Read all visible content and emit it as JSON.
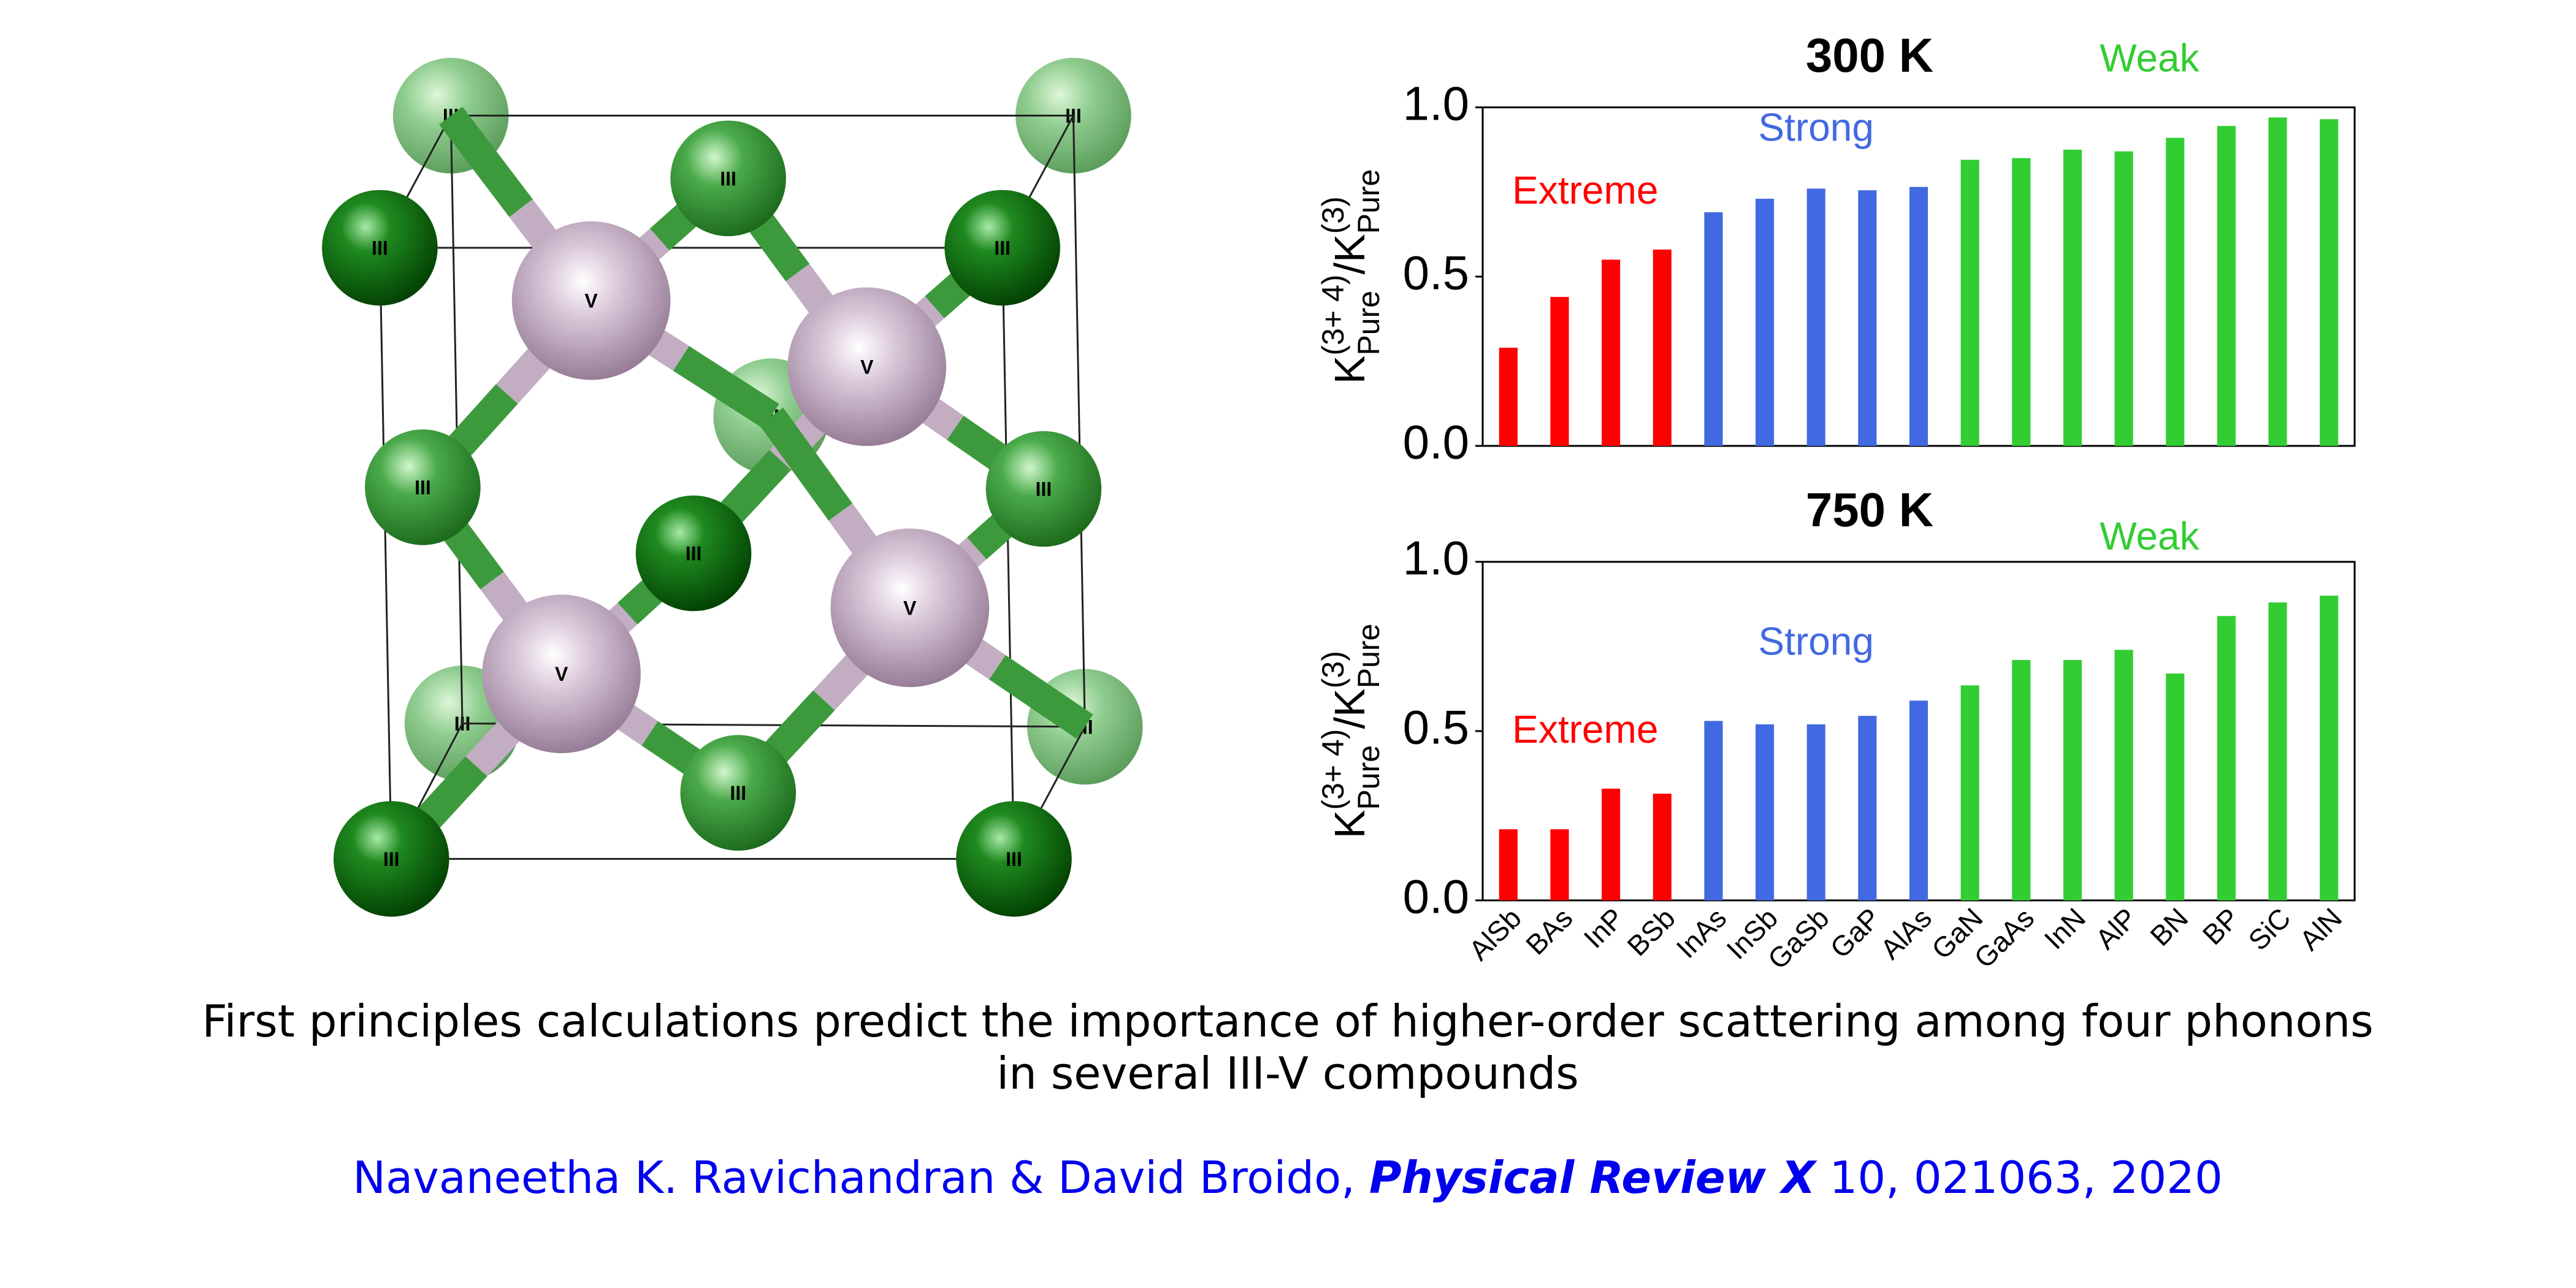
{
  "structure": {
    "cation": "III",
    "anion": "V"
  },
  "chart_data": [
    {
      "type": "bar",
      "title": "300 K",
      "ylabel": [
        "K",
        "Pure",
        "(3+ 4)",
        "/",
        "K",
        "Pure",
        "(3)"
      ],
      "series": [
        {
          "name": "Extreme",
          "color": "#ff0000",
          "values": [
            0.29,
            0.44,
            0.55,
            0.58,
            null,
            null,
            null,
            null,
            null,
            null,
            null,
            null,
            null,
            null,
            null,
            null,
            null
          ]
        },
        {
          "name": "Strong",
          "color": "#4169e1",
          "values": [
            null,
            null,
            null,
            null,
            0.69,
            0.73,
            0.76,
            0.755,
            0.765,
            null,
            null,
            null,
            null,
            null,
            null,
            null,
            null
          ]
        },
        {
          "name": "Weak",
          "color": "#32cd32",
          "values": [
            null,
            null,
            null,
            null,
            null,
            null,
            null,
            null,
            null,
            0.845,
            0.85,
            0.875,
            0.87,
            0.91,
            0.945,
            0.97,
            0.965
          ]
        }
      ],
      "ylim": [
        0,
        1
      ],
      "yticks": [
        {
          "value": 0,
          "label": "0.0"
        },
        {
          "value": 0.5,
          "label": "0.5"
        },
        {
          "value": 1,
          "label": "1.0"
        }
      ]
    },
    {
      "type": "bar",
      "title": "750 K",
      "ylabel": [
        "K",
        "Pure",
        "(3+ 4)",
        "/",
        "K",
        "Pure",
        "(3)"
      ],
      "categories": [
        "AlSb",
        "BAs",
        "InP",
        "BSb",
        "InAs",
        "InSb",
        "GaSb",
        "GaP",
        "AlAs",
        "GaN",
        "GaAs",
        "InN",
        "AlP",
        "BN",
        "BP",
        "SiC",
        "AlN"
      ],
      "series": [
        {
          "name": "Extreme",
          "color": "#ff0000",
          "values": [
            0.21,
            0.21,
            0.33,
            0.315,
            null,
            null,
            null,
            null,
            null,
            null,
            null,
            null,
            null,
            null,
            null,
            null,
            null
          ]
        },
        {
          "name": "Strong",
          "color": "#4169e1",
          "values": [
            null,
            null,
            null,
            null,
            0.53,
            0.52,
            0.52,
            0.545,
            0.59,
            null,
            null,
            null,
            null,
            null,
            null,
            null,
            null
          ]
        },
        {
          "name": "Weak",
          "color": "#32cd32",
          "values": [
            null,
            null,
            null,
            null,
            null,
            null,
            null,
            null,
            null,
            0.635,
            0.71,
            0.71,
            0.74,
            0.67,
            0.84,
            0.88,
            0.9
          ]
        }
      ],
      "ylim": [
        0,
        1
      ],
      "yticks": [
        {
          "value": 0,
          "label": "0.0"
        },
        {
          "value": 0.5,
          "label": "0.5"
        },
        {
          "value": 1,
          "label": "1.0"
        }
      ]
    }
  ],
  "caption": [
    "First principles calculations predict the importance of higher-order scattering among four phonons",
    "in several III-V compounds"
  ],
  "citation": {
    "authors": "Navaneetha K. Ravichandran & David Broido,",
    "journal": "Physical Review X",
    "details": "10, 021063, 2020"
  }
}
